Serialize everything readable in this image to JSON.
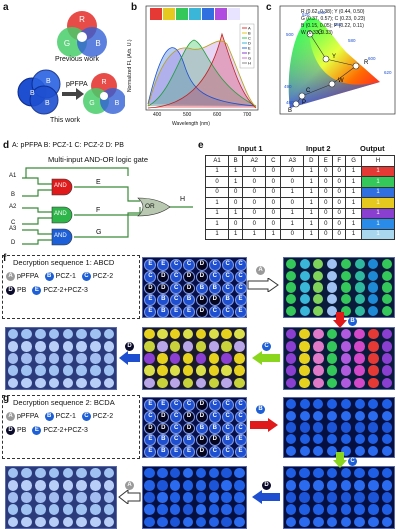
{
  "panels": {
    "a": "a",
    "b": "b",
    "c": "c",
    "d": "d",
    "e": "e",
    "f": "f",
    "g": "g"
  },
  "panel_a": {
    "previous_work": "Previous work",
    "this_work": "This work",
    "reagent": "pPFPA",
    "left_letters": [
      "R",
      "G",
      "B"
    ],
    "arrow_label": "pPFPA"
  },
  "panel_b": {
    "ylabel": "Normalized FL (Arb. U.)",
    "xlabel": "Wavelength (nm)",
    "xticks": [
      "400",
      "500",
      "600",
      "700"
    ],
    "legend": [
      "A",
      "B",
      "C",
      "D",
      "E",
      "F",
      "G",
      "H"
    ]
  },
  "panel_c": {
    "coords": [
      "R (0.62, 0.38); Y (0.44, 0.50)",
      "G (0.37, 0.57); C (0.23, 0.23)",
      "B (0.15, 0.05); P (0.22, 0.11)",
      "W (0.33, 0.33)"
    ],
    "point_labels": [
      "G",
      "Y",
      "R",
      "W",
      "C",
      "P",
      "B"
    ],
    "wavelength_labels": [
      "520",
      "540",
      "560",
      "500",
      "580",
      "600",
      "620",
      "490",
      "480"
    ]
  },
  "panel_d": {
    "title": "Multi-input AND-OR logic gate",
    "inputs_legend": "A: pPFPA   B: PCZ-1  C: PCZ-2    D: PB",
    "gate_inputs": [
      "A1",
      "B",
      "A2",
      "C",
      "A3",
      "D"
    ],
    "and_label": "AND",
    "or_label": "OR",
    "wires": [
      "E",
      "F",
      "G"
    ],
    "output": "H"
  },
  "panel_e": {
    "header_groups": [
      "Input 1",
      "Input 2",
      "Output"
    ],
    "columns": [
      "A1",
      "B",
      "A2",
      "C",
      "A3",
      "D",
      "E",
      "F",
      "G",
      "H"
    ],
    "rows": [
      [
        "1",
        "1",
        "0",
        "0",
        "0",
        "1",
        "0",
        "0",
        "1"
      ],
      [
        "0",
        "1",
        "0",
        "0",
        "0",
        "1",
        "0",
        "0",
        "1"
      ],
      [
        "0",
        "0",
        "0",
        "0",
        "1",
        "1",
        "0",
        "0",
        "1"
      ],
      [
        "1",
        "0",
        "0",
        "0",
        "0",
        "1",
        "0",
        "0",
        "1"
      ],
      [
        "1",
        "1",
        "0",
        "0",
        "1",
        "1",
        "0",
        "0",
        "1"
      ],
      [
        "1",
        "0",
        "0",
        "0",
        "1",
        "1",
        "0",
        "0",
        "1"
      ],
      [
        "1",
        "1",
        "1",
        "1",
        "0",
        "1",
        "0",
        "0",
        "1"
      ]
    ],
    "output_colors": [
      "#e53935",
      "#34c759",
      "#2f6fe0",
      "#e6c91e",
      "#8a3fd1",
      "#2a8be8",
      "#a9d8ee"
    ]
  },
  "panel_f": {
    "title": "Decryption sequence 1: ABCD",
    "legend": [
      {
        "badge": "A",
        "label": "pPFPA",
        "color": "#9a9a9a"
      },
      {
        "badge": "B",
        "label": "PCZ-1",
        "color": "#1d5fd6"
      },
      {
        "badge": "C",
        "label": "PCZ-2",
        "color": "#1d5fd6"
      },
      {
        "badge": "D",
        "label": "PB",
        "color": "#0a0a2a"
      },
      {
        "badge": "E",
        "label": "PCZ-2+PCZ-3",
        "color": "#1d5fd6"
      }
    ],
    "step_badges": [
      "A",
      "B",
      "C",
      "D"
    ],
    "code_grid": [
      [
        "E",
        "E",
        "C",
        "C",
        "D",
        "C",
        "C",
        "C"
      ],
      [
        "C",
        "D",
        "C",
        "D",
        "D",
        "C",
        "C",
        "C"
      ],
      [
        "D",
        "D",
        "C",
        "D",
        "B",
        "B",
        "C",
        "C"
      ],
      [
        "E",
        "B",
        "C",
        "B",
        "D",
        "D",
        "B",
        "E"
      ],
      [
        "E",
        "B",
        "E",
        "E",
        "D",
        "C",
        "C",
        "E"
      ]
    ]
  },
  "panel_g": {
    "title": "Decryption sequence 2: BCDA",
    "legend": [
      {
        "badge": "A",
        "label": "pPFPA",
        "color": "#9a9a9a"
      },
      {
        "badge": "B",
        "label": "PCZ-1",
        "color": "#1d5fd6"
      },
      {
        "badge": "C",
        "label": "PCZ-2",
        "color": "#1d5fd6"
      },
      {
        "badge": "D",
        "label": "PB",
        "color": "#0a0a2a"
      },
      {
        "badge": "E",
        "label": "PCZ-2+PCZ-3",
        "color": "#1d5fd6"
      }
    ],
    "step_badges": [
      "B",
      "C",
      "D",
      "A"
    ],
    "code_grid": [
      [
        "E",
        "E",
        "C",
        "C",
        "D",
        "C",
        "C",
        "C"
      ],
      [
        "C",
        "D",
        "C",
        "D",
        "D",
        "C",
        "C",
        "C"
      ],
      [
        "D",
        "D",
        "C",
        "D",
        "B",
        "B",
        "C",
        "C"
      ],
      [
        "E",
        "B",
        "C",
        "B",
        "D",
        "D",
        "B",
        "E"
      ],
      [
        "E",
        "B",
        "E",
        "E",
        "D",
        "C",
        "C",
        "E"
      ]
    ]
  },
  "colors": {
    "red": "#e53935",
    "green": "#34c759",
    "blue": "#1d4fd0",
    "yellow": "#e6d21e",
    "purple": "#8a3fd1",
    "cyan": "#39b6d8",
    "lightblue": "#9fc2f2",
    "grid_bg": "#08104a"
  }
}
